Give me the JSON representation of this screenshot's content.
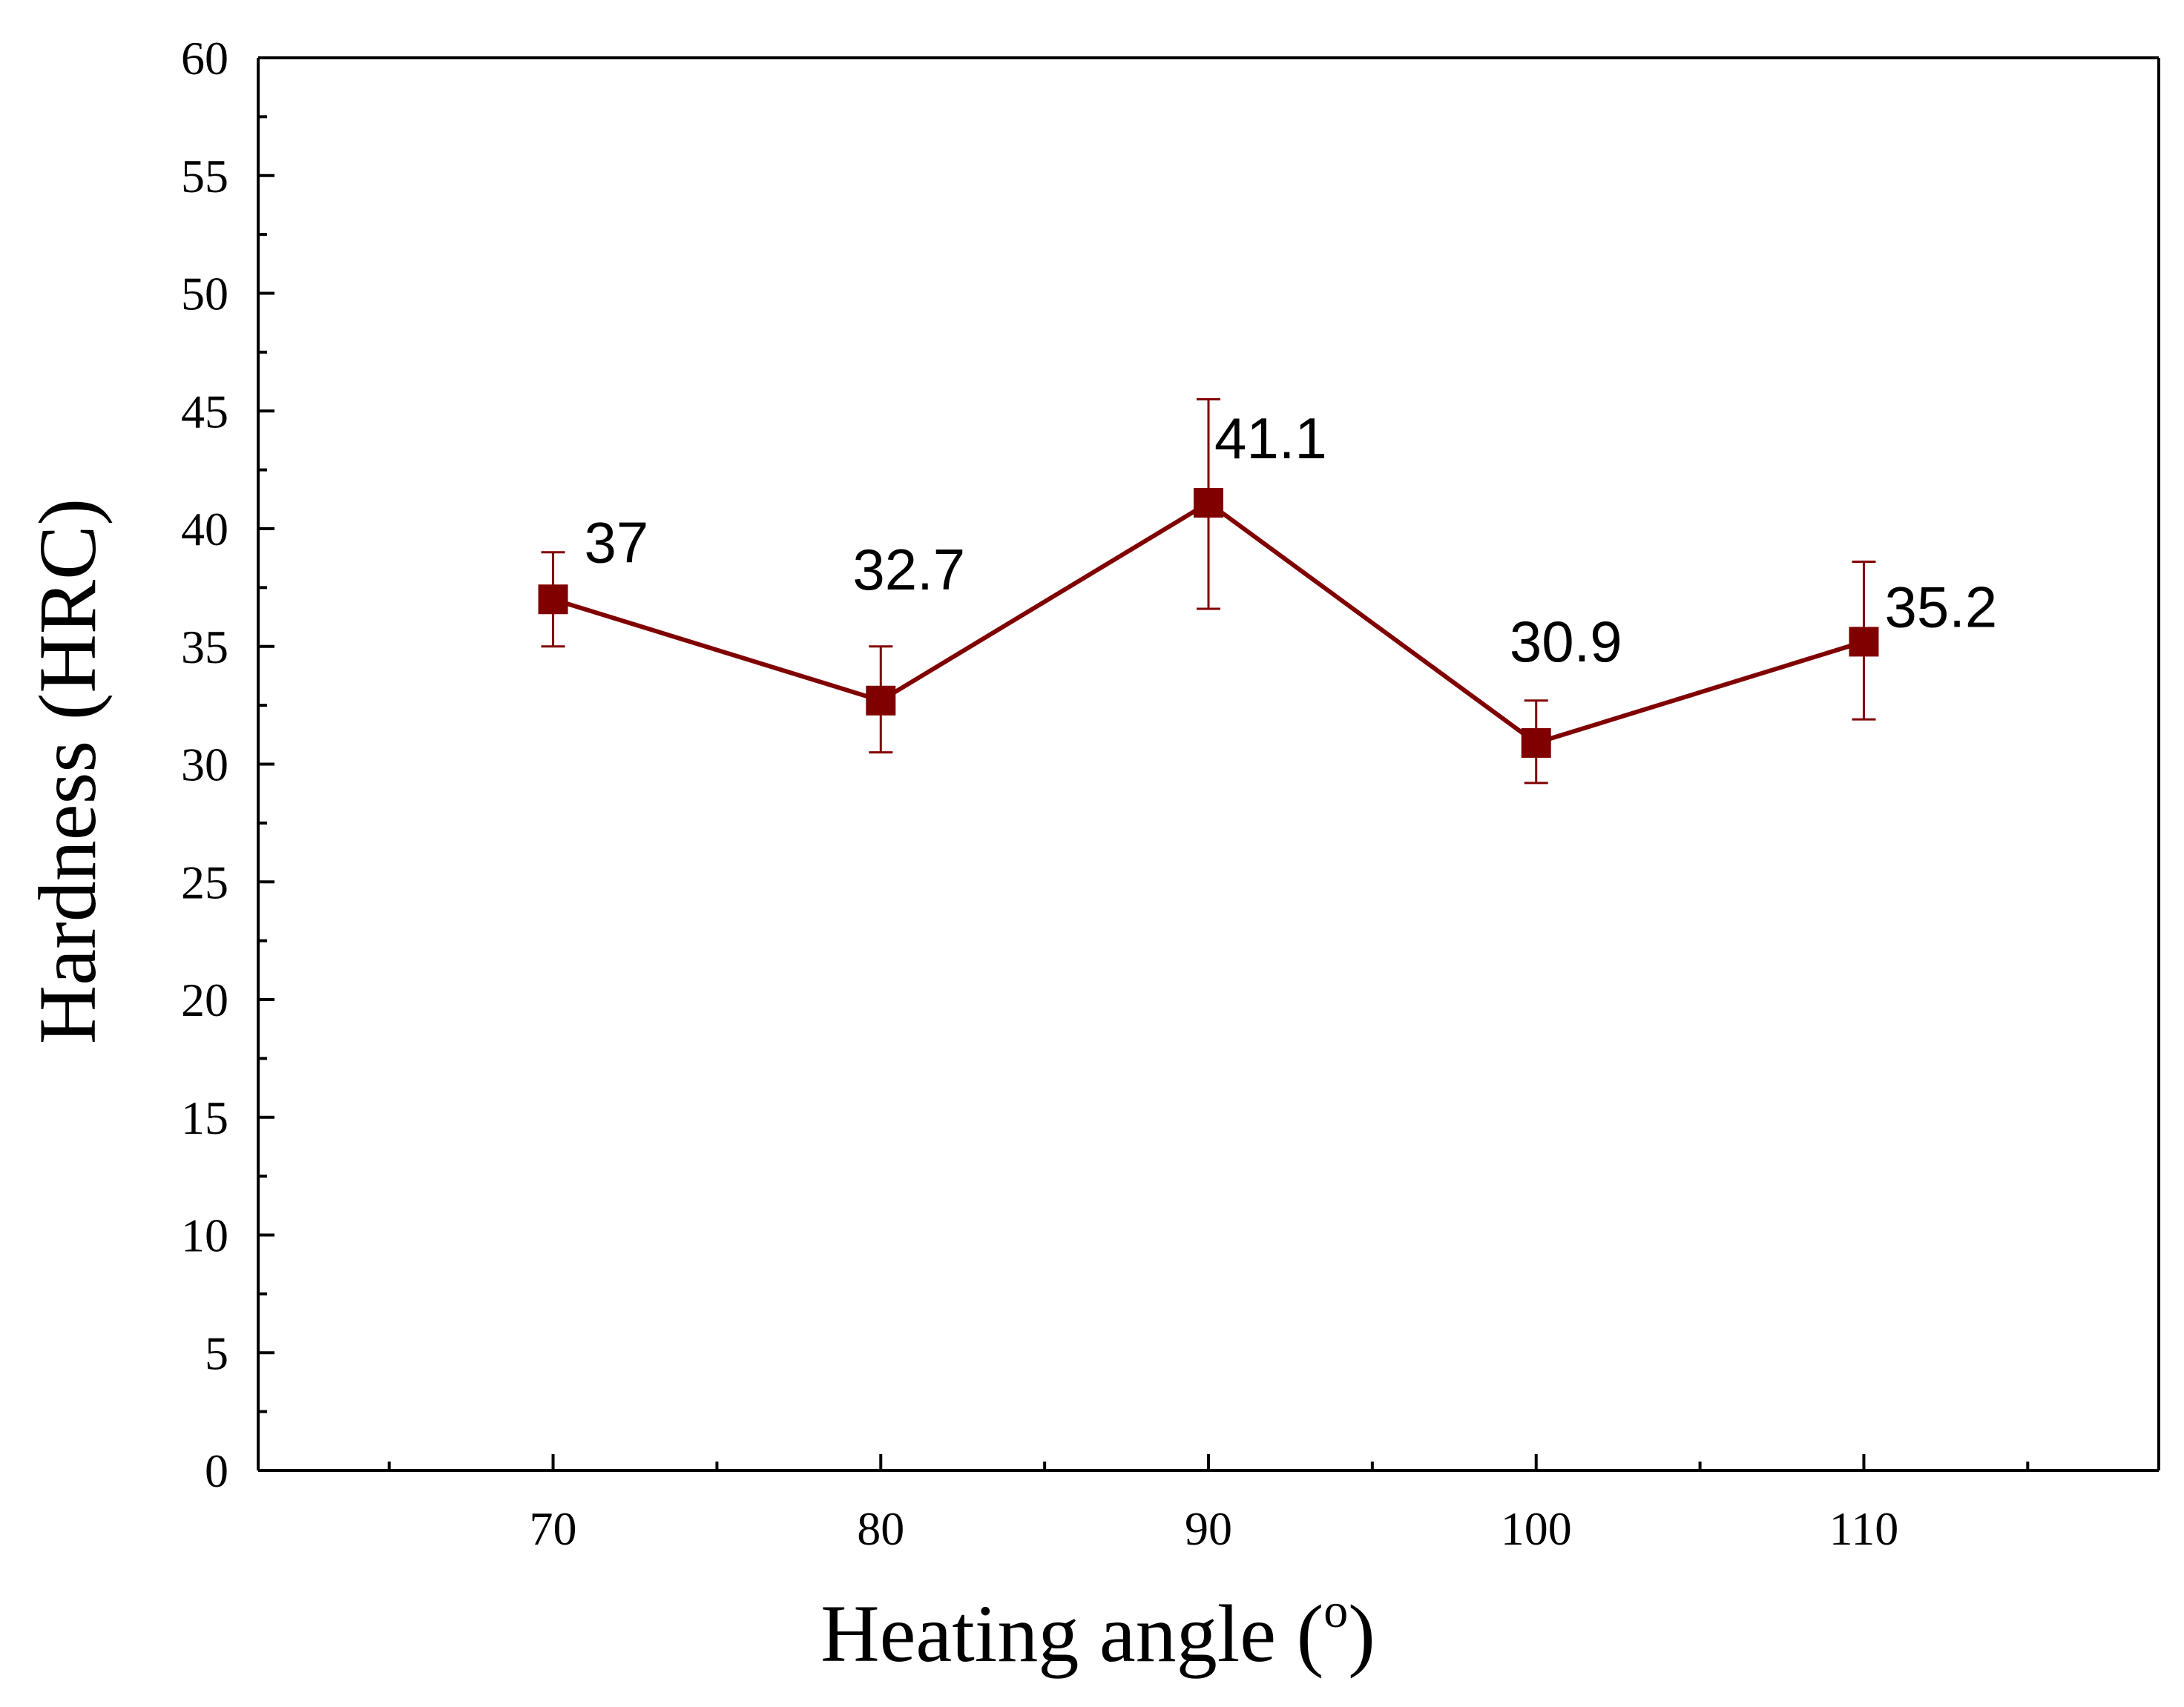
{
  "chart_data": {
    "type": "line",
    "title": "",
    "xlabel": "Heating angle (",
    "xlabel_superscript": "o",
    "xlabel_suffix": ")",
    "ylabel": "Hardness (HRC)",
    "xlim": [
      61,
      119
    ],
    "ylim": [
      0,
      60
    ],
    "x_ticks": [
      70,
      80,
      90,
      100,
      110
    ],
    "x_minor_ticks": [
      65,
      75,
      85,
      95,
      105,
      115
    ],
    "y_ticks": [
      0,
      5,
      10,
      15,
      20,
      25,
      30,
      35,
      40,
      45,
      50,
      55,
      60
    ],
    "y_minor_step": 2.5,
    "grid": false,
    "legend": "none",
    "series": [
      {
        "name": "Hardness",
        "color": "#800000",
        "x": [
          70,
          80,
          90,
          100,
          110
        ],
        "values": [
          37,
          32.7,
          41.1,
          30.9,
          35.2
        ],
        "error_low": [
          35.0,
          30.5,
          36.6,
          29.2,
          31.9
        ],
        "error_high": [
          39.0,
          35.0,
          45.5,
          32.7,
          38.6
        ],
        "labels": [
          "37",
          "32.7",
          "41.1",
          "30.9",
          "35.2"
        ]
      }
    ]
  }
}
